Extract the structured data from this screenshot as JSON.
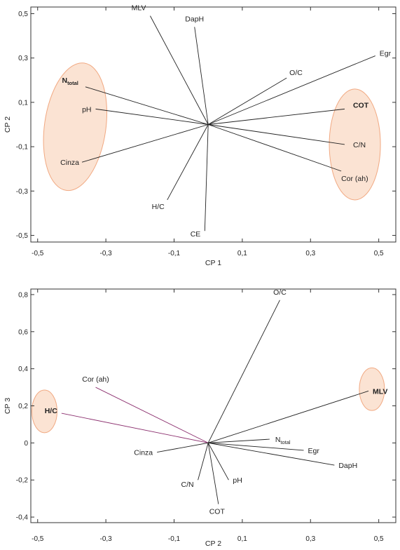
{
  "chart_data": [
    {
      "type": "scatter",
      "subtype": "pca-loading-biplot",
      "title": "",
      "xlabel": "CP 1",
      "ylabel": "CP 2",
      "xlim": [
        -0.52,
        0.55
      ],
      "ylim": [
        -0.53,
        0.53
      ],
      "xticks": [
        "-0,5",
        "-0,3",
        "-0,1",
        "0,1",
        "0,3",
        "0,5"
      ],
      "xtick_values": [
        -0.5,
        -0.3,
        -0.1,
        0.1,
        0.3,
        0.5
      ],
      "yticks": [
        "0,5",
        "0,3",
        "0,1",
        "-0,1",
        "-0,3",
        "-0,5"
      ],
      "ytick_values": [
        0.5,
        0.3,
        0.1,
        -0.1,
        -0.3,
        -0.5
      ],
      "grid": false,
      "vectors": [
        {
          "label": "MLV",
          "x": -0.17,
          "y": 0.49,
          "bold": false
        },
        {
          "label": "DapH",
          "x": -0.04,
          "y": 0.44,
          "bold": false
        },
        {
          "label": "Egr",
          "x": 0.49,
          "y": 0.31,
          "bold": false
        },
        {
          "label": "O/C",
          "x": 0.23,
          "y": 0.21,
          "bold": false
        },
        {
          "label": "N",
          "sub": "total",
          "x": -0.36,
          "y": 0.17,
          "bold": true
        },
        {
          "label": "pH",
          "x": -0.33,
          "y": 0.07,
          "bold": false
        },
        {
          "label": "COT",
          "x": 0.4,
          "y": 0.07,
          "bold": true
        },
        {
          "label": "C/N",
          "x": 0.4,
          "y": -0.09,
          "bold": false
        },
        {
          "label": "Cor (ah)",
          "x": 0.39,
          "y": -0.21,
          "bold": false
        },
        {
          "label": "Cinza",
          "x": -0.37,
          "y": -0.17,
          "bold": false
        },
        {
          "label": "H/C",
          "x": -0.12,
          "y": -0.34,
          "bold": false
        },
        {
          "label": "CE",
          "x": -0.01,
          "y": -0.48,
          "bold": false
        }
      ],
      "highlight_groups": [
        {
          "center": [
            -0.39,
            -0.01
          ],
          "radius": [
            0.09,
            0.29
          ],
          "members": [
            "N",
            "pH",
            "Cinza"
          ]
        },
        {
          "center": [
            0.43,
            -0.09
          ],
          "radius": [
            0.075,
            0.25
          ],
          "members": [
            "COT",
            "C/N",
            "Cor (ah)"
          ]
        }
      ],
      "colors": {
        "vector": "#222222",
        "highlight_fill": "#fbe3d3",
        "highlight_stroke": "#f1a982"
      }
    },
    {
      "type": "scatter",
      "subtype": "pca-loading-biplot",
      "title": "",
      "xlabel": "CP 2",
      "ylabel": "CP 3",
      "xlim": [
        -0.52,
        0.55
      ],
      "ylim": [
        -0.43,
        0.83
      ],
      "xticks": [
        "-0,5",
        "-0,3",
        "-0,1",
        "0,1",
        "0,3",
        "0,5"
      ],
      "xtick_values": [
        -0.5,
        -0.3,
        -0.1,
        0.1,
        0.3,
        0.5
      ],
      "yticks": [
        "0,8",
        "0,6",
        "0,4",
        "0,2",
        "0",
        "-0,2",
        "-0,4"
      ],
      "ytick_values": [
        0.8,
        0.6,
        0.4,
        0.2,
        0,
        -0.2,
        -0.4
      ],
      "grid": false,
      "vectors": [
        {
          "label": "O/C",
          "x": 0.21,
          "y": 0.77,
          "bold": false
        },
        {
          "label": "MLV",
          "x": 0.47,
          "y": 0.28,
          "bold": true
        },
        {
          "label": "Cor (ah)",
          "x": -0.33,
          "y": 0.3,
          "bold": false,
          "color": "#8b2f6e"
        },
        {
          "label": "H/C",
          "x": -0.43,
          "y": 0.16,
          "bold": true,
          "color": "#8b2f6e"
        },
        {
          "label": "N",
          "sub": "total",
          "x": 0.18,
          "y": 0.02,
          "bold": false
        },
        {
          "label": "Egr",
          "x": 0.28,
          "y": -0.04,
          "bold": false
        },
        {
          "label": "DapH",
          "x": 0.37,
          "y": -0.12,
          "bold": false
        },
        {
          "label": "Cinza",
          "x": -0.15,
          "y": -0.05,
          "bold": false
        },
        {
          "label": "C/N",
          "x": -0.03,
          "y": -0.2,
          "bold": false
        },
        {
          "label": "pH",
          "x": 0.06,
          "y": -0.2,
          "bold": false
        },
        {
          "label": "COT",
          "x": 0.03,
          "y": -0.33,
          "bold": false
        }
      ],
      "highlight_groups": [
        {
          "center": [
            -0.48,
            0.17
          ],
          "radius": [
            0.037,
            0.115
          ],
          "members": [
            "H/C"
          ]
        },
        {
          "center": [
            0.48,
            0.29
          ],
          "radius": [
            0.037,
            0.115
          ],
          "members": [
            "MLV"
          ]
        }
      ],
      "colors": {
        "vector": "#222222",
        "highlight_fill": "#fbe3d3",
        "highlight_stroke": "#f1a982"
      }
    }
  ]
}
